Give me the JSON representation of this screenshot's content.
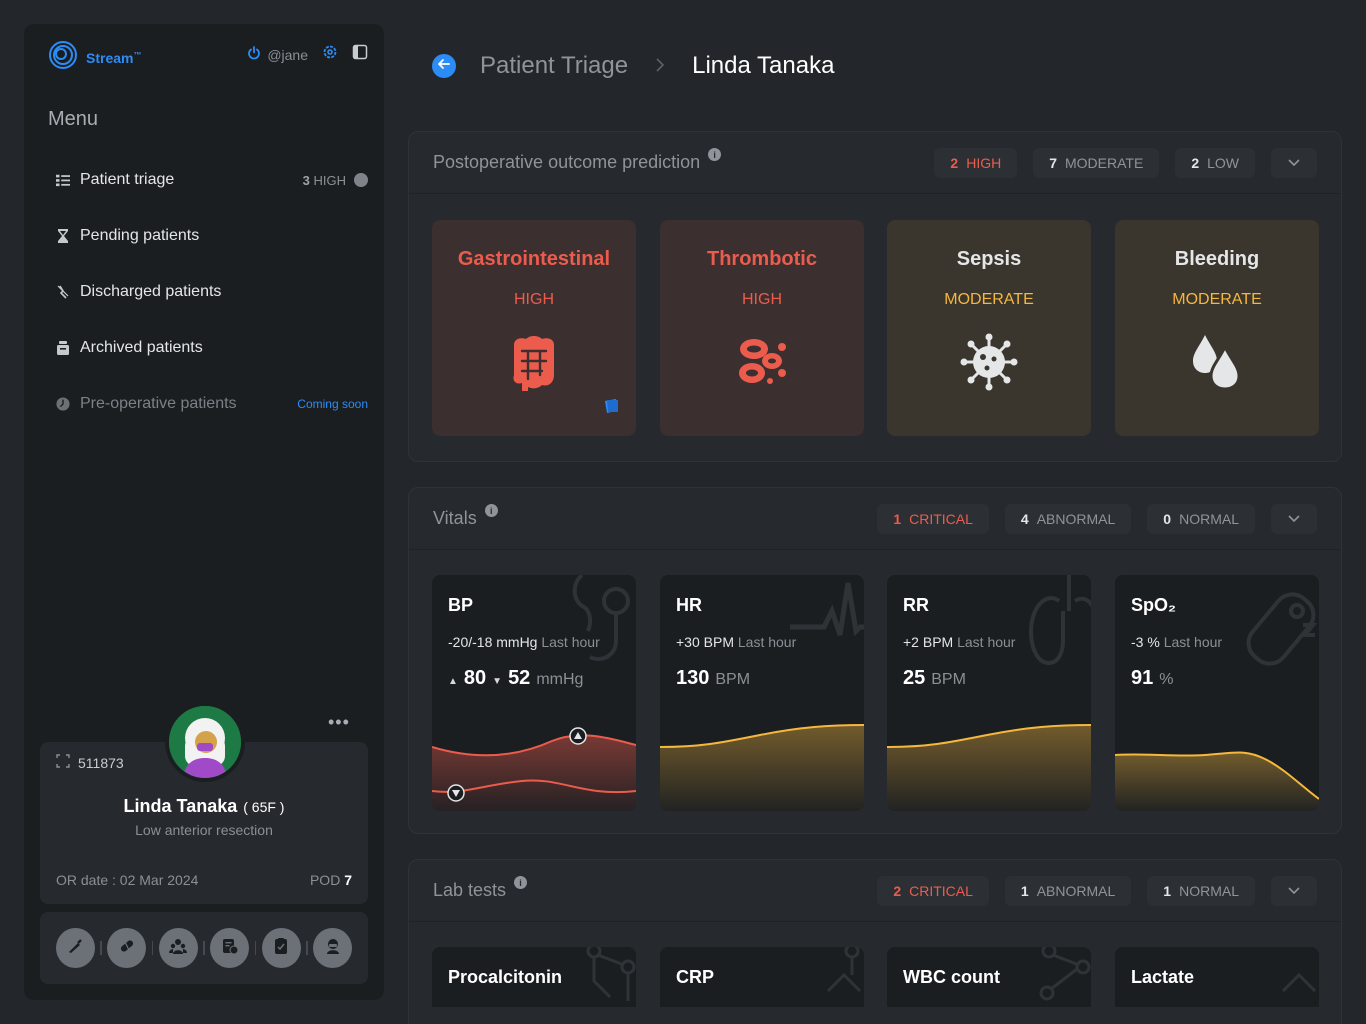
{
  "brand": {
    "name": "Stream",
    "tm": "™",
    "user": "@jane"
  },
  "menu": {
    "title": "Menu",
    "items": [
      {
        "label": "Patient triage",
        "count": "3",
        "count_label": "HIGH"
      },
      {
        "label": "Pending patients"
      },
      {
        "label": "Discharged patients"
      },
      {
        "label": "Archived patients"
      },
      {
        "label": "Pre-operative patients",
        "badge": "Coming soon"
      }
    ]
  },
  "patient": {
    "id": "511873",
    "name": "Linda Tanaka",
    "age_sex": "( 65F )",
    "procedure": "Low anterior resection",
    "or_date": "OR date : 02 Mar 2024",
    "pod_label": "POD",
    "pod_value": "7"
  },
  "header": {
    "parent": "Patient Triage",
    "current": "Linda Tanaka"
  },
  "prediction": {
    "title": "Postoperative outcome prediction",
    "pills": [
      {
        "count": "2",
        "label": "HIGH"
      },
      {
        "count": "7",
        "label": "MODERATE"
      },
      {
        "count": "2",
        "label": "LOW"
      }
    ],
    "cards": [
      {
        "title": "Gastrointestinal",
        "level": "HIGH"
      },
      {
        "title": "Thrombotic",
        "level": "HIGH"
      },
      {
        "title": "Sepsis",
        "level": "MODERATE"
      },
      {
        "title": "Bleeding",
        "level": "MODERATE"
      }
    ]
  },
  "vitals": {
    "title": "Vitals",
    "pills": [
      {
        "count": "1",
        "label": "CRITICAL"
      },
      {
        "count": "4",
        "label": "ABNORMAL"
      },
      {
        "count": "0",
        "label": "NORMAL"
      }
    ],
    "cards": [
      {
        "title": "BP",
        "delta": "-20/-18 mmHg",
        "delta_note": "Last hour",
        "value1": "80",
        "value2": "52",
        "unit": "mmHg"
      },
      {
        "title": "HR",
        "delta": "+30 BPM",
        "delta_note": "Last hour",
        "value": "130",
        "unit": "BPM"
      },
      {
        "title": "RR",
        "delta": "+2 BPM",
        "delta_note": "Last hour",
        "value": "25",
        "unit": "BPM"
      },
      {
        "title": "SpO₂",
        "delta": "-3 %",
        "delta_note": "Last hour",
        "value": "91",
        "unit": "%"
      }
    ]
  },
  "labs": {
    "title": "Lab tests",
    "pills": [
      {
        "count": "2",
        "label": "CRITICAL"
      },
      {
        "count": "1",
        "label": "ABNORMAL"
      },
      {
        "count": "1",
        "label": "NORMAL"
      }
    ],
    "cards": [
      {
        "title": "Procalcitonin"
      },
      {
        "title": "CRP"
      },
      {
        "title": "WBC count"
      },
      {
        "title": "Lactate"
      }
    ]
  },
  "colors": {
    "accent": "#2b8cf6",
    "high": "#ec5c4c",
    "moderate": "#f5b83d"
  },
  "icons": [
    "stream-logo-icon",
    "power-icon",
    "gear-icon",
    "sidebar-toggle-icon",
    "list-icon",
    "hourglass-icon",
    "discharge-icon",
    "archive-icon",
    "clock-icon",
    "id-scan-icon",
    "arrow-left-icon",
    "chevron-right-icon",
    "chevron-down-icon",
    "info-icon",
    "intestine-icon",
    "blood-cells-icon",
    "virus-icon",
    "drops-icon",
    "scalpel-icon",
    "pill-icon",
    "team-icon",
    "report-icon",
    "checklist-icon",
    "surgeon-icon"
  ]
}
